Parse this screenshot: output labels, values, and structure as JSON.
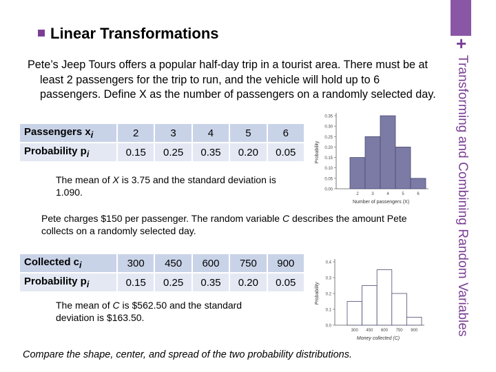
{
  "header": {
    "title": "Linear Transformations",
    "sidebar_title": "Transforming and Combining Random Variables",
    "plus": "+"
  },
  "intro": "Pete’s Jeep Tours offers a popular half-day trip in a tourist area. There must be at least 2 passengers for the trip to run, and the vehicle will hold up to 6 passengers. Define X as the number of passengers on a randomly selected day.",
  "table1": {
    "row1_label": "Passengers x",
    "row1_sub": "i",
    "row2_label": "Probability p",
    "row2_sub": "i",
    "values": [
      "2",
      "3",
      "4",
      "5",
      "6"
    ],
    "probs": [
      "0.15",
      "0.25",
      "0.35",
      "0.20",
      "0.05"
    ]
  },
  "note1": {
    "pre": "The mean of ",
    "var": "X",
    "post": " is 3.75 and the standard deviation is 1.090."
  },
  "charges": {
    "pre": "Pete charges $150 per passenger.  The random variable ",
    "var": "C",
    "post": " describes the amount Pete collects on a randomly selected day."
  },
  "table2": {
    "row1_label": "Collected c",
    "row1_sub": "i",
    "row2_label": "Probability p",
    "row2_sub": "i",
    "values": [
      "300",
      "450",
      "600",
      "750",
      "900"
    ],
    "probs": [
      "0.15",
      "0.25",
      "0.35",
      "0.20",
      "0.05"
    ]
  },
  "note2": {
    "pre": "The mean of ",
    "var": "C",
    "post": " is $562.50 and the standard deviation is $163.50."
  },
  "question": "Compare the shape, center, and spread of the two probability distributions.",
  "chart_data": [
    {
      "type": "bar",
      "categories": [
        "2",
        "3",
        "4",
        "5",
        "6"
      ],
      "values": [
        0.15,
        0.25,
        0.35,
        0.2,
        0.05
      ],
      "xlabel": "Number of passengers (X)",
      "ylabel": "Probability",
      "yticks": [
        "0.00",
        "0.05",
        "0.10",
        "0.15",
        "0.20",
        "0.25",
        "0.30",
        "0.35"
      ],
      "ylim": [
        0,
        0.35
      ],
      "colors": {
        "fill": "#7b7ba6",
        "stroke": "#4a4a70"
      }
    },
    {
      "type": "bar",
      "categories": [
        "300",
        "450",
        "600",
        "750",
        "900"
      ],
      "values": [
        0.15,
        0.25,
        0.35,
        0.2,
        0.05
      ],
      "xlabel": "Money collected (C)",
      "ylabel": "Probability",
      "yticks": [
        "0.0",
        "0.1",
        "0.2",
        "0.3",
        "0.4"
      ],
      "ylim": [
        0,
        0.4
      ],
      "colors": {
        "fill": "#ffffff",
        "stroke": "#4a4a70"
      }
    }
  ],
  "colors": {
    "accent": "#7a3f95",
    "tab": "#8a57a6",
    "table_dark": "#c9d3e8",
    "table_light": "#e3e8f3"
  }
}
